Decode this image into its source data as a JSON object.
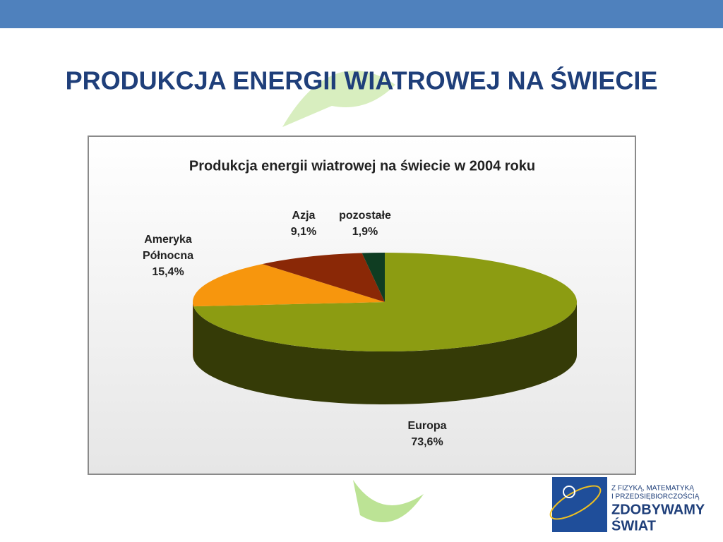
{
  "slide_title": "PRODUKCJA ENERGII WIATROWEJ NA ŚWIECIE",
  "chart_data": {
    "type": "pie3d",
    "title": "Produkcja energii wiatrowej na świecie w 2004 roku",
    "categories": [
      "Europa",
      "Ameryka Północna",
      "Azja",
      "pozostałe"
    ],
    "values": [
      73.6,
      15.4,
      9.1,
      1.9
    ],
    "value_labels": [
      "73,6%",
      "15,4%",
      "9,1%",
      "1,9%"
    ],
    "colors": [
      "#8c9c12",
      "#f7960d",
      "#8a2806",
      "#0f3d22"
    ]
  },
  "logo": {
    "line1": "Z FIZYKĄ, MATEMATYKĄ",
    "line2": "I PRZEDSIĘBIORCZOŚCIĄ",
    "line3": "ZDOBYWAMY",
    "line4": "ŚWIAT"
  }
}
